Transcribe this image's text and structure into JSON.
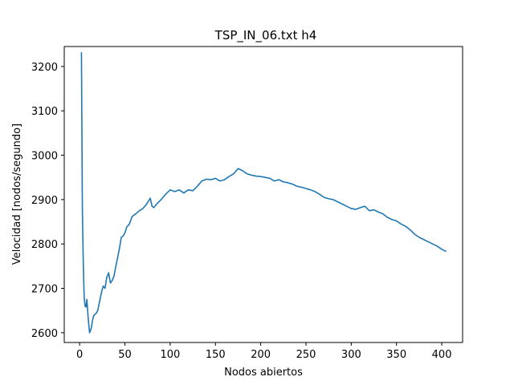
{
  "chart_data": {
    "type": "line",
    "title": "TSP_IN_06.txt h4",
    "xlabel": "Nodos abiertos",
    "ylabel": "Velocidad [nodos/segundo]",
    "xlim": [
      -17,
      423
    ],
    "ylim": [
      2578,
      3245
    ],
    "xticks": [
      0,
      50,
      100,
      150,
      200,
      250,
      300,
      350,
      400
    ],
    "yticks": [
      2600,
      2700,
      2800,
      2900,
      3000,
      3100,
      3200
    ],
    "grid": false,
    "color": "#1f77b4",
    "series": [
      {
        "x": [
          2,
          3,
          4,
          5,
          6,
          7,
          8,
          9,
          10,
          11,
          12,
          13,
          14,
          15,
          16,
          18,
          20,
          22,
          24,
          26,
          28,
          30,
          32,
          34,
          36,
          38,
          40,
          42,
          44,
          46,
          48,
          50,
          52,
          55,
          58,
          62,
          66,
          70,
          74,
          78,
          80,
          82,
          85,
          90,
          95,
          100,
          105,
          110,
          115,
          120,
          125,
          130,
          135,
          140,
          145,
          150,
          155,
          160,
          165,
          170,
          175,
          180,
          185,
          190,
          195,
          200,
          205,
          210,
          215,
          220,
          225,
          230,
          235,
          240,
          245,
          250,
          255,
          260,
          265,
          270,
          275,
          280,
          285,
          290,
          295,
          300,
          305,
          310,
          315,
          320,
          325,
          330,
          335,
          340,
          345,
          350,
          355,
          360,
          365,
          370,
          375,
          380,
          385,
          390,
          395,
          400,
          405
        ],
        "y": [
          3232,
          2880,
          2760,
          2680,
          2660,
          2658,
          2675,
          2645,
          2620,
          2600,
          2605,
          2612,
          2625,
          2635,
          2640,
          2643,
          2650,
          2670,
          2690,
          2705,
          2700,
          2725,
          2735,
          2712,
          2718,
          2728,
          2750,
          2770,
          2790,
          2815,
          2818,
          2825,
          2838,
          2845,
          2862,
          2868,
          2875,
          2880,
          2890,
          2903,
          2885,
          2882,
          2890,
          2900,
          2912,
          2922,
          2918,
          2922,
          2915,
          2922,
          2920,
          2930,
          2942,
          2946,
          2945,
          2948,
          2942,
          2945,
          2952,
          2958,
          2970,
          2965,
          2958,
          2955,
          2953,
          2952,
          2950,
          2948,
          2942,
          2945,
          2940,
          2938,
          2935,
          2930,
          2928,
          2925,
          2922,
          2918,
          2912,
          2905,
          2902,
          2900,
          2895,
          2890,
          2885,
          2880,
          2878,
          2882,
          2885,
          2875,
          2877,
          2872,
          2868,
          2860,
          2855,
          2852,
          2845,
          2840,
          2832,
          2822,
          2815,
          2810,
          2805,
          2800,
          2795,
          2788,
          2783
        ]
      }
    ]
  }
}
